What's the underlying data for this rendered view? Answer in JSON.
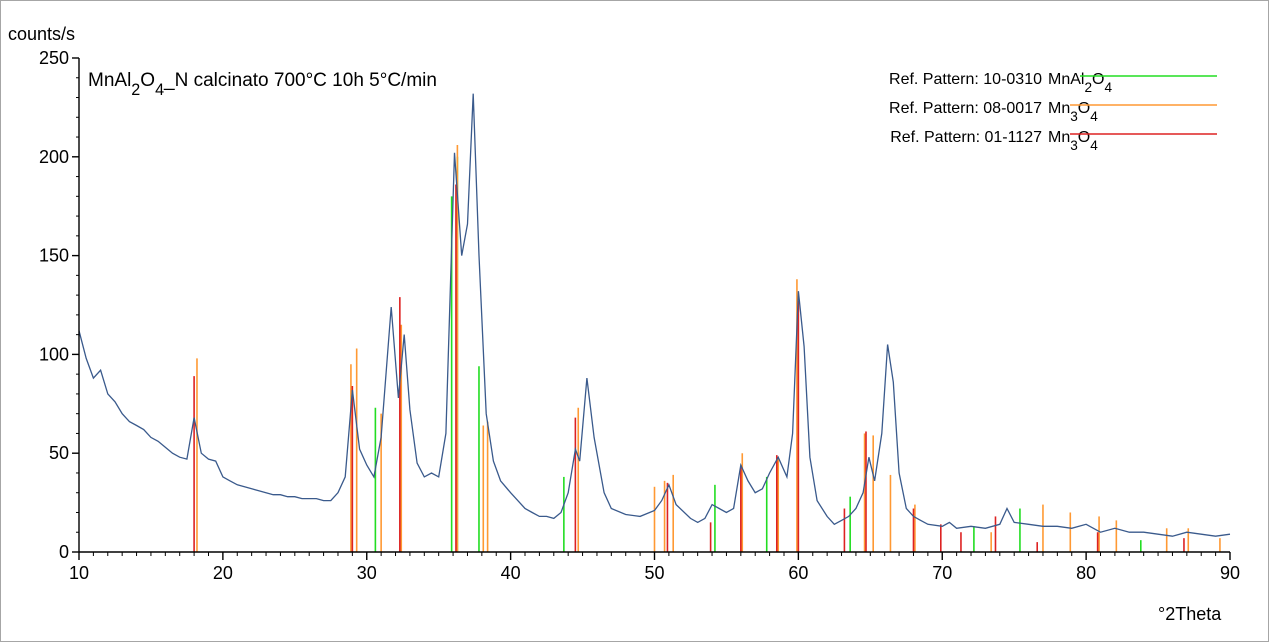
{
  "chart_data": {
    "type": "line",
    "title_parts": [
      {
        "t": "MnAl",
        "sub": false
      },
      {
        "t": "2",
        "sub": true
      },
      {
        "t": "O",
        "sub": false
      },
      {
        "t": "4",
        "sub": true
      },
      {
        "t": "_N calcinato 700°C 10h 5°C/min",
        "sub": false
      }
    ],
    "ylabel": "counts/s",
    "xlabel": "°2Theta",
    "xlim": [
      10,
      90
    ],
    "ylim": [
      0,
      250
    ],
    "xticks": [
      10,
      20,
      30,
      40,
      50,
      60,
      70,
      80,
      90
    ],
    "yticks": [
      0,
      50,
      100,
      150,
      200,
      250
    ],
    "legend_placement": "top-right",
    "legend": [
      {
        "label": "Ref. Pattern: 10-0310  ",
        "formula": [
          {
            "t": "MnAl",
            "sub": false
          },
          {
            "t": "2",
            "sub": true
          },
          {
            "t": "O",
            "sub": false
          },
          {
            "t": "4",
            "sub": true
          }
        ],
        "color": "#22dd22"
      },
      {
        "label": "Ref. Pattern: 08-0017  ",
        "formula": [
          {
            "t": "Mn",
            "sub": false
          },
          {
            "t": "3",
            "sub": true
          },
          {
            "t": "O",
            "sub": false
          },
          {
            "t": "4",
            "sub": true
          }
        ],
        "color": "#ff9933"
      },
      {
        "label": "Ref. Pattern: 01-1127  ",
        "formula": [
          {
            "t": "Mn",
            "sub": false
          },
          {
            "t": "3",
            "sub": true
          },
          {
            "t": "O",
            "sub": false
          },
          {
            "t": "4",
            "sub": true
          }
        ],
        "color": "#dd2222"
      }
    ],
    "series": [
      {
        "type": "line",
        "color": "#3a5a8c",
        "points": [
          [
            10,
            112
          ],
          [
            10.5,
            98
          ],
          [
            11,
            88
          ],
          [
            11.5,
            92
          ],
          [
            12,
            80
          ],
          [
            12.5,
            76
          ],
          [
            13,
            70
          ],
          [
            13.5,
            66
          ],
          [
            14,
            64
          ],
          [
            14.5,
            62
          ],
          [
            15,
            58
          ],
          [
            15.5,
            56
          ],
          [
            16,
            53
          ],
          [
            16.5,
            50
          ],
          [
            17,
            48
          ],
          [
            17.5,
            47
          ],
          [
            18,
            68
          ],
          [
            18.5,
            50
          ],
          [
            19,
            47
          ],
          [
            19.5,
            46
          ],
          [
            20,
            38
          ],
          [
            20.5,
            36
          ],
          [
            21,
            34
          ],
          [
            21.5,
            33
          ],
          [
            22,
            32
          ],
          [
            22.5,
            31
          ],
          [
            23,
            30
          ],
          [
            23.5,
            29
          ],
          [
            24,
            29
          ],
          [
            24.5,
            28
          ],
          [
            25,
            28
          ],
          [
            25.5,
            27
          ],
          [
            26,
            27
          ],
          [
            26.5,
            27
          ],
          [
            27,
            26
          ],
          [
            27.5,
            26
          ],
          [
            28,
            30
          ],
          [
            28.5,
            38
          ],
          [
            29,
            82
          ],
          [
            29.5,
            52
          ],
          [
            30,
            44
          ],
          [
            30.5,
            38
          ],
          [
            31,
            58
          ],
          [
            31.7,
            124
          ],
          [
            32.2,
            78
          ],
          [
            32.6,
            110
          ],
          [
            33,
            72
          ],
          [
            33.5,
            45
          ],
          [
            34,
            38
          ],
          [
            34.5,
            40
          ],
          [
            35,
            38
          ],
          [
            35.5,
            60
          ],
          [
            36.1,
            202
          ],
          [
            36.6,
            150
          ],
          [
            37,
            166
          ],
          [
            37.4,
            232
          ],
          [
            37.8,
            150
          ],
          [
            38.3,
            70
          ],
          [
            38.8,
            46
          ],
          [
            39.3,
            36
          ],
          [
            40,
            30
          ],
          [
            40.5,
            26
          ],
          [
            41,
            22
          ],
          [
            41.5,
            20
          ],
          [
            42,
            18
          ],
          [
            42.5,
            18
          ],
          [
            43,
            17
          ],
          [
            43.5,
            20
          ],
          [
            44,
            30
          ],
          [
            44.5,
            52
          ],
          [
            44.8,
            46
          ],
          [
            45.3,
            88
          ],
          [
            45.8,
            58
          ],
          [
            46.5,
            30
          ],
          [
            47,
            22
          ],
          [
            48,
            19
          ],
          [
            49,
            18
          ],
          [
            50,
            21
          ],
          [
            50.5,
            26
          ],
          [
            51,
            34
          ],
          [
            51.5,
            24
          ],
          [
            52.5,
            17
          ],
          [
            53,
            15
          ],
          [
            53.5,
            17
          ],
          [
            54,
            24
          ],
          [
            54.5,
            22
          ],
          [
            55,
            20
          ],
          [
            55.5,
            22
          ],
          [
            56,
            44
          ],
          [
            56.5,
            36
          ],
          [
            57,
            30
          ],
          [
            57.5,
            32
          ],
          [
            58,
            40
          ],
          [
            58.6,
            48
          ],
          [
            59.2,
            38
          ],
          [
            59.6,
            60
          ],
          [
            60,
            132
          ],
          [
            60.4,
            104
          ],
          [
            60.8,
            48
          ],
          [
            61.3,
            26
          ],
          [
            62,
            18
          ],
          [
            62.5,
            14
          ],
          [
            63,
            16
          ],
          [
            63.5,
            18
          ],
          [
            64,
            22
          ],
          [
            64.5,
            30
          ],
          [
            64.9,
            48
          ],
          [
            65.3,
            36
          ],
          [
            65.8,
            60
          ],
          [
            66.2,
            105
          ],
          [
            66.6,
            86
          ],
          [
            67,
            40
          ],
          [
            67.5,
            22
          ],
          [
            68,
            18
          ],
          [
            68.5,
            16
          ],
          [
            69,
            14
          ],
          [
            70,
            13
          ],
          [
            70.5,
            15
          ],
          [
            71,
            12
          ],
          [
            72,
            13
          ],
          [
            73,
            12
          ],
          [
            74,
            14
          ],
          [
            74.5,
            22
          ],
          [
            75,
            15
          ],
          [
            76,
            14
          ],
          [
            77,
            13
          ],
          [
            78,
            13
          ],
          [
            79,
            12
          ],
          [
            80,
            14
          ],
          [
            81,
            10
          ],
          [
            82,
            12
          ],
          [
            83,
            10
          ],
          [
            84,
            10
          ],
          [
            85,
            9
          ],
          [
            86,
            8
          ],
          [
            87,
            10
          ],
          [
            88,
            9
          ],
          [
            89,
            8
          ],
          [
            90,
            9
          ]
        ]
      }
    ],
    "ref_patterns": [
      {
        "name": "10-0310",
        "color": "#22dd22",
        "peaks": [
          [
            30.6,
            73
          ],
          [
            35.9,
            180
          ],
          [
            36.3,
            200
          ],
          [
            37.8,
            94
          ],
          [
            43.7,
            38
          ],
          [
            54.2,
            34
          ],
          [
            57.8,
            38
          ],
          [
            63.6,
            28
          ],
          [
            72.2,
            13
          ],
          [
            75.4,
            22
          ],
          [
            83.8,
            6
          ]
        ]
      },
      {
        "name": "08-0017",
        "color": "#ff9933",
        "peaks": [
          [
            18.2,
            98
          ],
          [
            28.9,
            95
          ],
          [
            29.3,
            103
          ],
          [
            31.0,
            70
          ],
          [
            32.4,
            115
          ],
          [
            36.3,
            206
          ],
          [
            38.1,
            64
          ],
          [
            38.4,
            66
          ],
          [
            44.7,
            73
          ],
          [
            50.0,
            33
          ],
          [
            50.7,
            36
          ],
          [
            51.3,
            39
          ],
          [
            56.1,
            50
          ],
          [
            58.6,
            48
          ],
          [
            59.9,
            138
          ],
          [
            64.6,
            60
          ],
          [
            65.2,
            59
          ],
          [
            66.4,
            39
          ],
          [
            68.1,
            24
          ],
          [
            73.4,
            10
          ],
          [
            77.0,
            24
          ],
          [
            78.9,
            20
          ],
          [
            80.9,
            18
          ],
          [
            82.1,
            16
          ],
          [
            85.6,
            12
          ],
          [
            87.1,
            12
          ],
          [
            89.3,
            7
          ]
        ]
      },
      {
        "name": "01-1127",
        "color": "#dd2222",
        "peaks": [
          [
            18.0,
            89
          ],
          [
            29.0,
            84
          ],
          [
            32.3,
            129
          ],
          [
            36.2,
            186
          ],
          [
            44.5,
            68
          ],
          [
            50.9,
            35
          ],
          [
            53.9,
            15
          ],
          [
            56.0,
            43
          ],
          [
            58.5,
            49
          ],
          [
            60.0,
            127
          ],
          [
            63.2,
            22
          ],
          [
            64.7,
            61
          ],
          [
            68.0,
            22
          ],
          [
            69.9,
            14
          ],
          [
            71.3,
            10
          ],
          [
            73.7,
            18
          ],
          [
            76.6,
            5
          ],
          [
            80.8,
            10
          ],
          [
            86.8,
            7
          ]
        ]
      }
    ]
  }
}
